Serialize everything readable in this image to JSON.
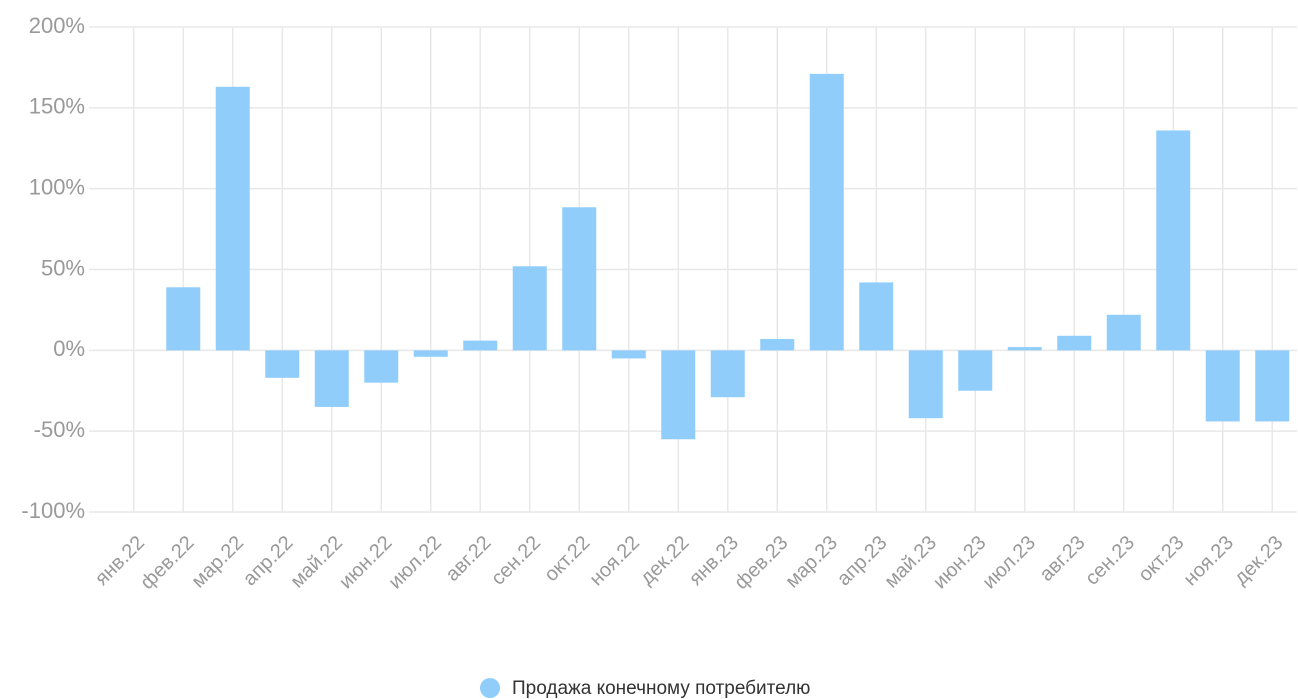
{
  "chart_data": {
    "type": "bar",
    "categories": [
      "янв.22",
      "фев.22",
      "мар.22",
      "апр.22",
      "май.22",
      "июн.22",
      "июл.22",
      "авг.22",
      "сен.22",
      "окт.22",
      "ноя.22",
      "дек.22",
      "янв.23",
      "фев.23",
      "мар.23",
      "апр.23",
      "май.23",
      "июн.23",
      "июл.23",
      "авг.23",
      "сен.23",
      "окт.23",
      "ноя.23",
      "дек.23"
    ],
    "series": [
      {
        "name": "Продажа конечному потребителю",
        "color": "#90cdfb",
        "values": [
          0,
          39,
          163,
          -17,
          -35,
          -20,
          -4,
          6,
          52,
          88.5,
          -5,
          -55,
          -29,
          7,
          171,
          42,
          -42,
          -25,
          2,
          9,
          22,
          136,
          -44,
          -44
        ]
      }
    ],
    "ylim": [
      -100,
      200
    ],
    "yticks": [
      {
        "value": -100,
        "label": "-100%"
      },
      {
        "value": -50,
        "label": "-50%"
      },
      {
        "value": 0,
        "label": "0%"
      },
      {
        "value": 50,
        "label": "50%"
      },
      {
        "value": 100,
        "label": "100%"
      },
      {
        "value": 150,
        "label": "150%"
      },
      {
        "value": 200,
        "label": "200%"
      }
    ],
    "grid": true,
    "legend": "bottom"
  }
}
